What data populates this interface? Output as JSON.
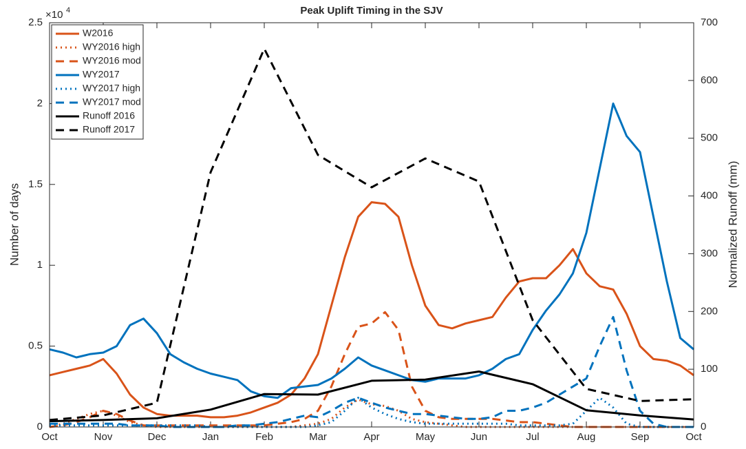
{
  "chart_data": {
    "type": "line",
    "title": "Peak Uplift Timing in the SJV",
    "y_label": "Number of days",
    "y2_label": "Normalized Runoff (mm)",
    "y_multiplier": {
      "base": "×10",
      "exponent": "4"
    },
    "legend": "upper left",
    "x": [
      0,
      0.25,
      0.5,
      0.75,
      1,
      1.25,
      1.5,
      1.75,
      2,
      2.25,
      2.5,
      2.75,
      3,
      3.25,
      3.5,
      3.75,
      4,
      4.25,
      4.5,
      4.75,
      5,
      5.25,
      5.5,
      5.75,
      6,
      6.25,
      6.5,
      6.75,
      7,
      7.25,
      7.5,
      7.75,
      8,
      8.25,
      8.5,
      8.75,
      9,
      9.25,
      9.5,
      9.75,
      10,
      10.25,
      10.5,
      10.75,
      11,
      11.25,
      11.5,
      11.75,
      12
    ],
    "xlim": [
      0,
      12
    ],
    "xticks": [
      {
        "value": 0,
        "label": "Oct"
      },
      {
        "value": 1,
        "label": "Nov"
      },
      {
        "value": 2,
        "label": "Dec"
      },
      {
        "value": 3,
        "label": "Jan"
      },
      {
        "value": 4,
        "label": "Feb"
      },
      {
        "value": 5,
        "label": "Mar"
      },
      {
        "value": 6,
        "label": "Apr"
      },
      {
        "value": 7,
        "label": "May"
      },
      {
        "value": 8,
        "label": "Jun"
      },
      {
        "value": 9,
        "label": "Jul"
      },
      {
        "value": 10,
        "label": "Aug"
      },
      {
        "value": 11,
        "label": "Sep"
      },
      {
        "value": 12,
        "label": "Oct"
      }
    ],
    "ylim": [
      0,
      25000
    ],
    "yticks": [
      0,
      {
        "value": 5000,
        "label": "0.5"
      },
      {
        "value": 10000,
        "label": "1"
      },
      {
        "value": 15000,
        "label": "1.5"
      },
      {
        "value": 20000,
        "label": "2"
      },
      {
        "value": 25000,
        "label": "2.5"
      }
    ],
    "y2lim": [
      0,
      700
    ],
    "y2ticks": [
      0,
      100,
      200,
      300,
      400,
      500,
      600,
      700
    ],
    "series": [
      {
        "name": "W2016",
        "color": "#d95319",
        "style": "solid",
        "values": [
          3200,
          3400,
          3600,
          3800,
          4200,
          3300,
          2000,
          1200,
          800,
          700,
          700,
          700,
          600,
          600,
          700,
          900,
          1200,
          1500,
          2000,
          3000,
          4500,
          7500,
          10500,
          13000,
          13900,
          13800,
          13000,
          10000,
          7500,
          6300,
          6100,
          6400,
          6600,
          6800,
          8000,
          9000,
          9200,
          9200,
          10000,
          11000,
          9500,
          8700,
          8500,
          7000,
          5000,
          4200,
          4100,
          3800,
          3200
        ]
      },
      {
        "name": "WY2016 high",
        "color": "#d95319",
        "style": "dotted",
        "values": [
          0,
          200,
          500,
          800,
          1000,
          700,
          300,
          100,
          0,
          0,
          0,
          0,
          0,
          0,
          0,
          0,
          0,
          0,
          0,
          100,
          200,
          500,
          1200,
          1700,
          1400,
          1300,
          1000,
          500,
          300,
          200,
          100,
          0,
          0,
          0,
          0,
          0,
          0,
          0,
          0,
          0,
          0,
          0,
          0,
          0,
          0,
          0,
          0,
          0,
          0
        ]
      },
      {
        "name": "WY2016 mod",
        "color": "#d95319",
        "style": "dashed",
        "values": [
          0,
          100,
          300,
          600,
          1000,
          800,
          400,
          100,
          100,
          100,
          100,
          100,
          100,
          100,
          100,
          100,
          100,
          200,
          300,
          500,
          1000,
          2500,
          4500,
          6200,
          6400,
          7100,
          6000,
          2500,
          1000,
          600,
          500,
          500,
          500,
          500,
          400,
          300,
          300,
          200,
          100,
          0,
          0,
          0,
          0,
          0,
          0,
          0,
          0,
          0,
          0
        ]
      },
      {
        "name": "WY2017",
        "color": "#0072bd",
        "style": "solid",
        "values": [
          4800,
          4600,
          4300,
          4500,
          4600,
          5000,
          6300,
          6700,
          5800,
          4500,
          4000,
          3600,
          3300,
          3100,
          2900,
          2200,
          1900,
          1800,
          2400,
          2500,
          2600,
          3000,
          3600,
          4300,
          3800,
          3500,
          3200,
          2900,
          2800,
          3000,
          3000,
          3000,
          3200,
          3600,
          4200,
          4500,
          6000,
          7200,
          8200,
          9500,
          12000,
          16000,
          20000,
          18000,
          17000,
          13000,
          9000,
          5500,
          4800
        ]
      },
      {
        "name": "WY2017 high",
        "color": "#0072bd",
        "style": "dotted",
        "values": [
          100,
          100,
          100,
          100,
          100,
          100,
          100,
          100,
          100,
          100,
          100,
          100,
          0,
          0,
          0,
          0,
          0,
          0,
          0,
          0,
          100,
          300,
          1000,
          1800,
          1200,
          800,
          500,
          300,
          200,
          200,
          200,
          200,
          200,
          200,
          200,
          100,
          100,
          100,
          100,
          200,
          1000,
          1800,
          1200,
          200,
          0,
          0,
          0,
          0,
          0
        ]
      },
      {
        "name": "WY2017 mod",
        "color": "#0072bd",
        "style": "dashed",
        "values": [
          200,
          200,
          200,
          200,
          200,
          200,
          100,
          100,
          100,
          0,
          0,
          0,
          0,
          0,
          100,
          100,
          200,
          300,
          500,
          700,
          600,
          1000,
          1500,
          1800,
          1500,
          1200,
          1000,
          800,
          800,
          700,
          600,
          500,
          500,
          600,
          1000,
          1000,
          1200,
          1500,
          2000,
          2500,
          3000,
          5000,
          6800,
          3500,
          1000,
          200,
          0,
          0,
          0
        ]
      },
      {
        "name": "Runoff 2016",
        "color": "#000000",
        "style": "solid",
        "axis": "y2",
        "x": [
          0,
          1,
          2,
          3,
          4,
          5,
          6,
          7,
          8,
          9,
          10,
          11,
          12
        ],
        "values": [
          10,
          12,
          15,
          30,
          57,
          56,
          80,
          82,
          96,
          74,
          29,
          20,
          13
        ]
      },
      {
        "name": "Runoff 2017",
        "color": "#000000",
        "style": "dashed",
        "axis": "y2",
        "x": [
          0,
          1,
          2,
          3,
          4,
          5,
          6,
          7,
          8,
          9,
          10,
          11,
          12
        ],
        "values": [
          12,
          20,
          42,
          441,
          655,
          471,
          415,
          465,
          425,
          185,
          66,
          45,
          48
        ]
      }
    ]
  }
}
